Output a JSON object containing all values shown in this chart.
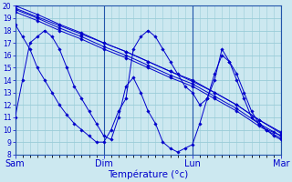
{
  "bg_color": "#cce8f0",
  "grid_color": "#99ccd8",
  "line_color": "#0000cc",
  "xlabel": "Température (°c)",
  "ylim": [
    8,
    20
  ],
  "yticks": [
    8,
    9,
    10,
    11,
    12,
    13,
    14,
    15,
    16,
    17,
    18,
    19,
    20
  ],
  "day_labels": [
    "Sam",
    "Dim",
    "Lun",
    "Mar"
  ],
  "day_positions": [
    0,
    72,
    144,
    216
  ],
  "total_hours": 216,
  "lines": [
    {
      "x": [
        0,
        18,
        36,
        54,
        72,
        90,
        108,
        126,
        144,
        162,
        180,
        198,
        216
      ],
      "y": [
        19.5,
        18.8,
        18.0,
        17.3,
        16.5,
        15.8,
        15.0,
        14.2,
        13.5,
        12.5,
        11.5,
        10.3,
        9.3
      ]
    },
    {
      "x": [
        0,
        18,
        36,
        54,
        72,
        90,
        108,
        126,
        144,
        162,
        180,
        198,
        216
      ],
      "y": [
        19.7,
        19.0,
        18.2,
        17.5,
        16.7,
        16.0,
        15.2,
        14.4,
        13.7,
        12.7,
        11.7,
        10.5,
        9.5
      ]
    },
    {
      "x": [
        0,
        18,
        36,
        54,
        72,
        90,
        108,
        126,
        144,
        162,
        180,
        198,
        216
      ],
      "y": [
        20.0,
        19.3,
        18.5,
        17.8,
        17.0,
        16.3,
        15.5,
        14.7,
        14.0,
        13.0,
        12.0,
        10.8,
        9.7
      ]
    },
    {
      "x": [
        0,
        18,
        36,
        54,
        72,
        90,
        108,
        126,
        144,
        162,
        180,
        198,
        216
      ],
      "y": [
        19.8,
        19.1,
        18.4,
        17.7,
        17.0,
        16.3,
        15.5,
        14.7,
        13.9,
        13.0,
        12.0,
        10.8,
        9.8
      ]
    },
    {
      "x": [
        0,
        6,
        12,
        18,
        24,
        30,
        36,
        42,
        48,
        54,
        60,
        66,
        72,
        78,
        84,
        90,
        96,
        102,
        108,
        114,
        120,
        126,
        132,
        138,
        144,
        150,
        156,
        162,
        168,
        174,
        180,
        186,
        192,
        198,
        204,
        210,
        216
      ],
      "y": [
        18.5,
        17.5,
        16.5,
        15.0,
        14.0,
        13.0,
        12.0,
        11.2,
        10.5,
        10.0,
        9.5,
        9.0,
        9.0,
        10.0,
        11.5,
        12.5,
        16.5,
        17.5,
        18.0,
        17.5,
        16.5,
        15.5,
        14.5,
        13.5,
        13.0,
        12.0,
        12.5,
        14.5,
        16.0,
        15.5,
        14.5,
        13.0,
        11.5,
        10.5,
        10.0,
        9.8,
        9.5
      ]
    },
    {
      "x": [
        0,
        6,
        12,
        18,
        24,
        30,
        36,
        42,
        48,
        54,
        60,
        66,
        72,
        78,
        84,
        90,
        96,
        102,
        108,
        114,
        120,
        126,
        132,
        138,
        144,
        150,
        156,
        162,
        168,
        174,
        180,
        186,
        192,
        198,
        204,
        210,
        216
      ],
      "y": [
        11.0,
        14.0,
        17.0,
        17.5,
        18.0,
        17.5,
        16.5,
        15.0,
        13.5,
        12.5,
        11.5,
        10.5,
        9.5,
        9.2,
        11.0,
        13.5,
        14.2,
        13.0,
        11.5,
        10.5,
        9.0,
        8.5,
        8.2,
        8.5,
        8.8,
        10.5,
        12.5,
        14.0,
        16.5,
        15.5,
        14.0,
        12.5,
        11.0,
        10.5,
        10.0,
        9.5,
        9.2
      ]
    }
  ]
}
